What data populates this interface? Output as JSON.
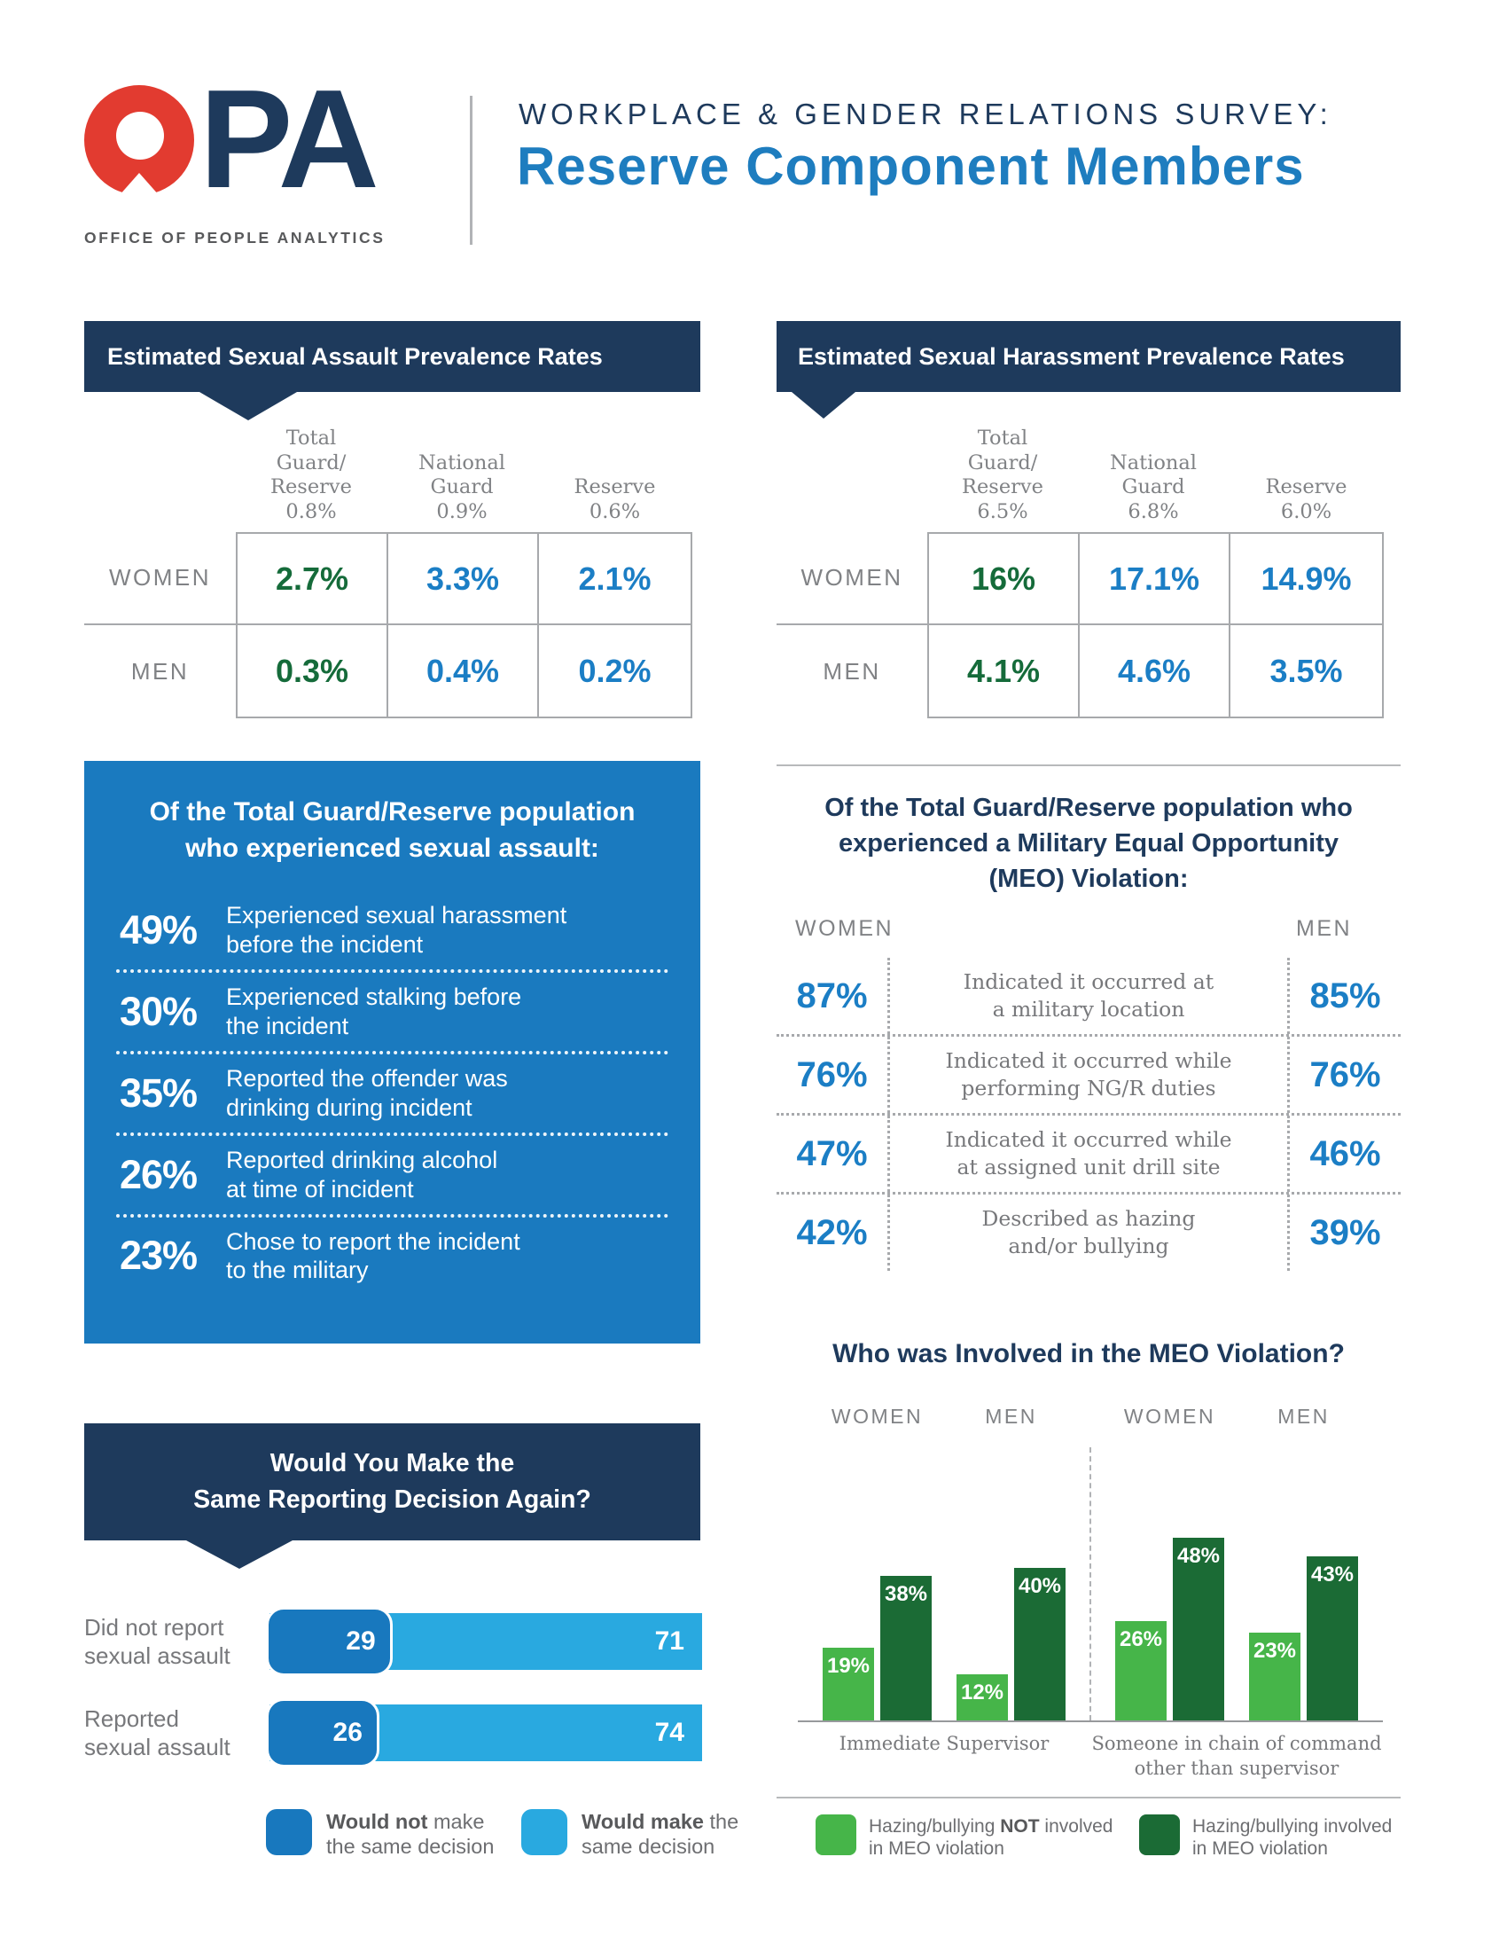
{
  "header": {
    "logo": {
      "acronym": "PA",
      "org": "OFFICE OF PEOPLE ANALYTICS",
      "mark_color": "#e23b30",
      "text_color": "#1e3a5c"
    },
    "kicker": "WORKPLACE & GENDER RELATIONS SURVEY:",
    "title": "Reserve Component Members",
    "title_color": "#1e7dbf"
  },
  "assault_table": {
    "banner": "Estimated Sexual Assault Prevalence Rates",
    "col_headers": [
      "Total\nGuard/\nReserve\n0.8%",
      "National\nGuard\n0.9%",
      "Reserve\n0.6%"
    ],
    "rows": [
      {
        "label": "WOMEN",
        "values": [
          "2.7%",
          "3.3%",
          "2.1%"
        ]
      },
      {
        "label": "MEN",
        "values": [
          "0.3%",
          "0.4%",
          "0.2%"
        ]
      }
    ],
    "value_colors": [
      "#156b3a",
      "#1b7ec5",
      "#1b7ec5"
    ]
  },
  "harassment_table": {
    "banner": "Estimated Sexual Harassment Prevalence Rates",
    "col_headers": [
      "Total\nGuard/\nReserve\n6.5%",
      "National\nGuard\n6.8%",
      "Reserve\n6.0%"
    ],
    "rows": [
      {
        "label": "WOMEN",
        "values": [
          "16%",
          "17.1%",
          "14.9%"
        ]
      },
      {
        "label": "MEN",
        "values": [
          "4.1%",
          "4.6%",
          "3.5%"
        ]
      }
    ],
    "value_colors": [
      "#156b3a",
      "#1b7ec5",
      "#1b7ec5"
    ]
  },
  "assault_experience": {
    "title": "Of the Total Guard/Reserve population\nwho experienced sexual assault:",
    "box_color": "#1a7abf",
    "rows": [
      {
        "pct": "49%",
        "text": "Experienced sexual harassment\nbefore the incident"
      },
      {
        "pct": "30%",
        "text": "Experienced stalking before\nthe incident"
      },
      {
        "pct": "35%",
        "text": "Reported the offender was\ndrinking during incident"
      },
      {
        "pct": "26%",
        "text": "Reported drinking alcohol\nat time of incident"
      },
      {
        "pct": "23%",
        "text": "Chose to report the incident\nto the military"
      }
    ]
  },
  "meo": {
    "title": "Of the Total Guard/Reserve population who\nexperienced a Military Equal Opportunity\n(MEO) Violation:",
    "women_label": "WOMEN",
    "men_label": "MEN",
    "rows": [
      {
        "women": "87%",
        "text": "Indicated it occurred at\na military location",
        "men": "85%"
      },
      {
        "women": "76%",
        "text": "Indicated it occurred while\nperforming NG/R duties",
        "men": "76%"
      },
      {
        "women": "47%",
        "text": "Indicated it occurred while\nat assigned unit drill site",
        "men": "46%"
      },
      {
        "women": "42%",
        "text": "Described as hazing\nand/or bullying",
        "men": "39%"
      }
    ]
  },
  "reporting": {
    "banner": "Would You Make the\nSame Reporting Decision Again?",
    "legend": [
      {
        "bold": "Would not",
        "rest": " make\nthe same decision",
        "color": "#1878be"
      },
      {
        "bold": "Would make",
        "rest": " the\nsame decision",
        "color": "#29a9e0"
      }
    ]
  },
  "who_chart": {
    "title": "Who was Involved in the MEO Violation?",
    "legend": [
      {
        "pre": "Hazing/bullying ",
        "bold": "NOT",
        "post": " involved\nin MEO violation",
        "color": "#46b549"
      },
      {
        "pre": "Hazing/bullying involved\nin MEO violation",
        "bold": "",
        "post": "",
        "color": "#1b6b35"
      }
    ]
  },
  "chart_data": [
    {
      "type": "bar",
      "orientation": "horizontal",
      "stacked": true,
      "title": "Would You Make the Same Reporting Decision Again?",
      "categories": [
        "Did not report\nsexual assault",
        "Reported\nsexual assault"
      ],
      "series": [
        {
          "name": "Would not make the same decision",
          "color": "#1878be",
          "values": [
            29,
            26
          ]
        },
        {
          "name": "Would make the same decision",
          "color": "#29a9e0",
          "values": [
            71,
            74
          ]
        }
      ],
      "xlim": [
        0,
        100
      ],
      "value_labels": "inside"
    },
    {
      "type": "bar",
      "orientation": "vertical",
      "grouped": true,
      "title": "Who was Involved in the MEO Violation?",
      "categories": [
        "WOMEN",
        "MEN",
        "WOMEN",
        "MEN"
      ],
      "group_labels": [
        "Immediate Supervisor",
        "Someone in chain of command\nother than supervisor"
      ],
      "series": [
        {
          "name": "Hazing/bullying NOT involved in MEO violation",
          "color": "#46b549",
          "values": [
            19,
            12,
            26,
            23
          ]
        },
        {
          "name": "Hazing/bullying involved in MEO violation",
          "color": "#1b6b35",
          "values": [
            38,
            40,
            48,
            43
          ]
        }
      ],
      "ylim": [
        0,
        50
      ],
      "unit": "%",
      "legend_position": "bottom"
    }
  ]
}
